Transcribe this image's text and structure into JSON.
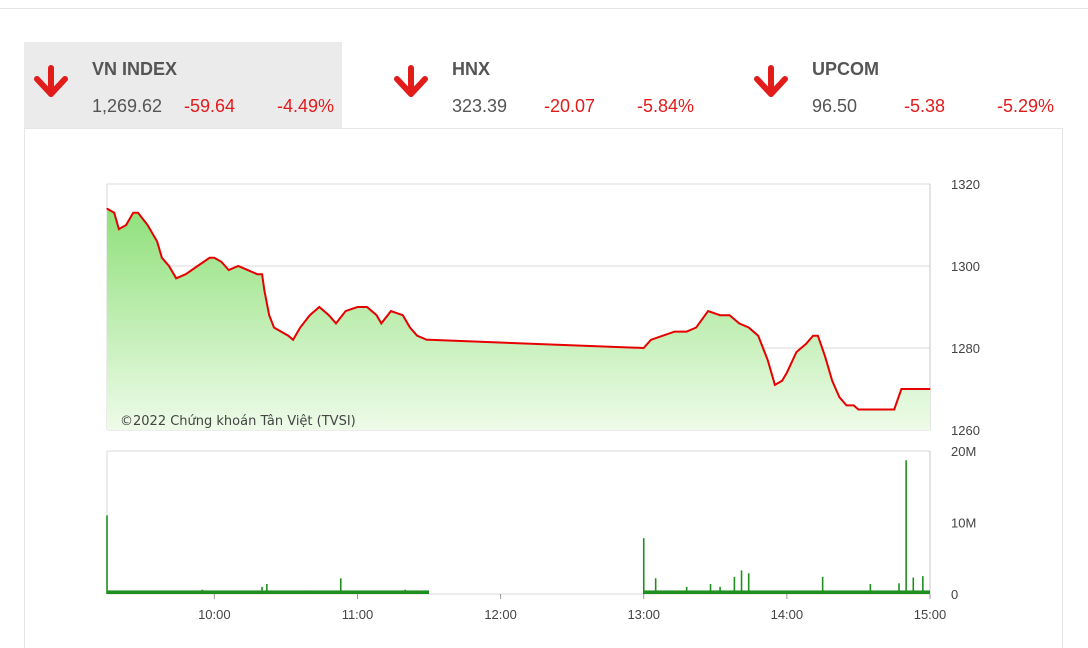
{
  "indices": [
    {
      "name": "VN INDEX",
      "price": "1,269.62",
      "change": "-59.64",
      "pct": "-4.49%",
      "active": true
    },
    {
      "name": "HNX",
      "price": "323.39",
      "change": "-20.07",
      "pct": "-5.84%",
      "active": false
    },
    {
      "name": "UPCOM",
      "price": "96.50",
      "change": "-5.38",
      "pct": "-5.29%",
      "active": false
    }
  ],
  "colors": {
    "down": "#e21b1b",
    "price_line": "#e60000",
    "area_top": "#8fe07a",
    "area_bottom": "#eefbe9",
    "volume": "#1f8f1f"
  },
  "chart_data": {
    "type": "line",
    "watermark": "©2022 Chứng khoán Tân Việt (TVSI)",
    "price": {
      "ylim": [
        1260,
        1320
      ],
      "yticks": [
        "1320",
        "1300",
        "1280",
        "1260"
      ],
      "points": [
        [
          "09:15",
          1314
        ],
        [
          "09:18",
          1313
        ],
        [
          "09:20",
          1309
        ],
        [
          "09:23",
          1310
        ],
        [
          "09:26",
          1313
        ],
        [
          "09:28",
          1313
        ],
        [
          "09:32",
          1310
        ],
        [
          "09:36",
          1306
        ],
        [
          "09:38",
          1302
        ],
        [
          "09:41",
          1300
        ],
        [
          "09:44",
          1297
        ],
        [
          "09:48",
          1298
        ],
        [
          "09:53",
          1300
        ],
        [
          "09:58",
          1302
        ],
        [
          "10:00",
          1302
        ],
        [
          "10:03",
          1301
        ],
        [
          "10:06",
          1299
        ],
        [
          "10:10",
          1300
        ],
        [
          "10:14",
          1299
        ],
        [
          "10:18",
          1298
        ],
        [
          "10:20",
          1298
        ],
        [
          "10:21",
          1294
        ],
        [
          "10:23",
          1288
        ],
        [
          "10:25",
          1285
        ],
        [
          "10:28",
          1284
        ],
        [
          "10:31",
          1283
        ],
        [
          "10:33",
          1282
        ],
        [
          "10:36",
          1285
        ],
        [
          "10:40",
          1288
        ],
        [
          "10:44",
          1290
        ],
        [
          "10:48",
          1288
        ],
        [
          "10:51",
          1286
        ],
        [
          "10:55",
          1289
        ],
        [
          "11:00",
          1290
        ],
        [
          "11:04",
          1290
        ],
        [
          "11:08",
          1288
        ],
        [
          "11:10",
          1286
        ],
        [
          "11:14",
          1289
        ],
        [
          "11:19",
          1288
        ],
        [
          "11:22",
          1285
        ],
        [
          "11:25",
          1283
        ],
        [
          "11:29",
          1282
        ],
        [
          "11:30",
          1282
        ],
        [
          "13:00",
          1280
        ],
        [
          "13:03",
          1282
        ],
        [
          "13:08",
          1283
        ],
        [
          "13:13",
          1284
        ],
        [
          "13:18",
          1284
        ],
        [
          "13:22",
          1285
        ],
        [
          "13:27",
          1289
        ],
        [
          "13:32",
          1288
        ],
        [
          "13:36",
          1288
        ],
        [
          "13:40",
          1286
        ],
        [
          "13:44",
          1285
        ],
        [
          "13:48",
          1283
        ],
        [
          "13:52",
          1277
        ],
        [
          "13:55",
          1271
        ],
        [
          "13:58",
          1272
        ],
        [
          "14:00",
          1274
        ],
        [
          "14:04",
          1279
        ],
        [
          "14:08",
          1281
        ],
        [
          "14:11",
          1283
        ],
        [
          "14:13",
          1283
        ],
        [
          "14:16",
          1278
        ],
        [
          "14:19",
          1272
        ],
        [
          "14:22",
          1268
        ],
        [
          "14:25",
          1266
        ],
        [
          "14:28",
          1266
        ],
        [
          "14:30",
          1265
        ],
        [
          "14:45",
          1265
        ],
        [
          "14:48",
          1270
        ],
        [
          "15:00",
          1270
        ]
      ]
    },
    "volume": {
      "ylim": [
        0,
        20000000
      ],
      "yticks": [
        "20M",
        "10M",
        "0"
      ],
      "spikes": [
        [
          "09:15",
          11000000
        ],
        [
          "09:55",
          600000
        ],
        [
          "10:20",
          1000000
        ],
        [
          "10:22",
          1400000
        ],
        [
          "10:40",
          500000
        ],
        [
          "10:53",
          2200000
        ],
        [
          "11:20",
          600000
        ],
        [
          "13:00",
          7800000
        ],
        [
          "13:05",
          2200000
        ],
        [
          "13:18",
          1000000
        ],
        [
          "13:28",
          1400000
        ],
        [
          "13:32",
          1000000
        ],
        [
          "13:38",
          2400000
        ],
        [
          "13:41",
          3300000
        ],
        [
          "13:44",
          2900000
        ],
        [
          "14:15",
          2400000
        ],
        [
          "14:35",
          1400000
        ],
        [
          "14:47",
          1500000
        ],
        [
          "14:50",
          18700000
        ],
        [
          "14:53",
          2300000
        ],
        [
          "14:57",
          2500000
        ]
      ],
      "base": 500000
    },
    "xticks": [
      "10:00",
      "11:00",
      "12:00",
      "13:00",
      "14:00",
      "15:00"
    ],
    "x_range": [
      "09:15",
      "15:00"
    ]
  }
}
